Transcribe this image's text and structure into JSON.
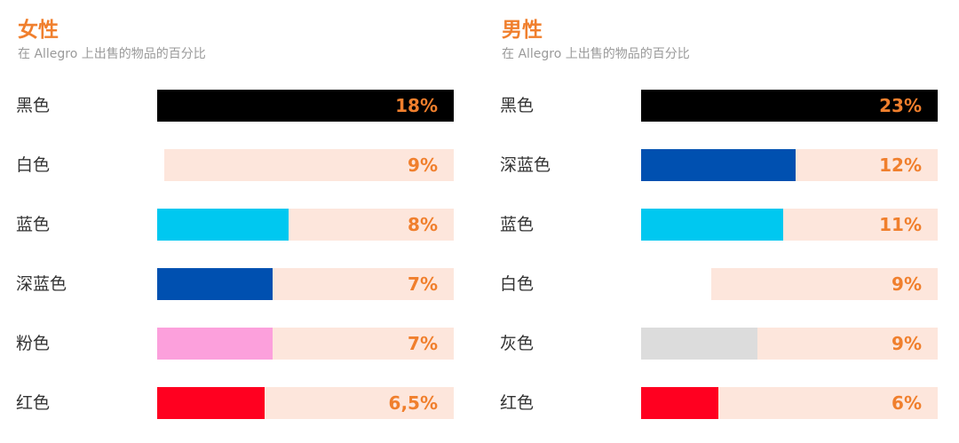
{
  "chart_data": [
    {
      "type": "bar",
      "title": "女性",
      "subtitle": "在 Allegro 上出售的物品的百分比",
      "categories": [
        "黑色",
        "白色",
        "蓝色",
        "深蓝色",
        "粉色",
        "红色"
      ],
      "values": [
        18,
        9,
        8,
        7,
        7,
        6.5
      ],
      "value_labels": [
        "18%",
        "9%",
        "8%",
        "7%",
        "7%",
        "6,5%"
      ],
      "colors": [
        "#000000",
        "#ffffff",
        "#00c8f0",
        "#0050b0",
        "#fca0dc",
        "#ff0020"
      ],
      "track_color": "#fde6dc",
      "xlim": [
        0,
        18
      ]
    },
    {
      "type": "bar",
      "title": "男性",
      "subtitle": "在 Allegro 上出售的物品的百分比",
      "categories": [
        "黑色",
        "深蓝色",
        "蓝色",
        "白色",
        "灰色",
        "红色"
      ],
      "values": [
        23,
        12,
        11,
        9,
        9,
        6
      ],
      "value_labels": [
        "23%",
        "12%",
        "11%",
        "9%",
        "9%",
        "6%"
      ],
      "colors": [
        "#000000",
        "#0050b0",
        "#00c8f0",
        "#ffffff",
        "#dcdcdc",
        "#ff0020"
      ],
      "track_color": "#fde6dc",
      "xlim": [
        0,
        23
      ]
    }
  ]
}
